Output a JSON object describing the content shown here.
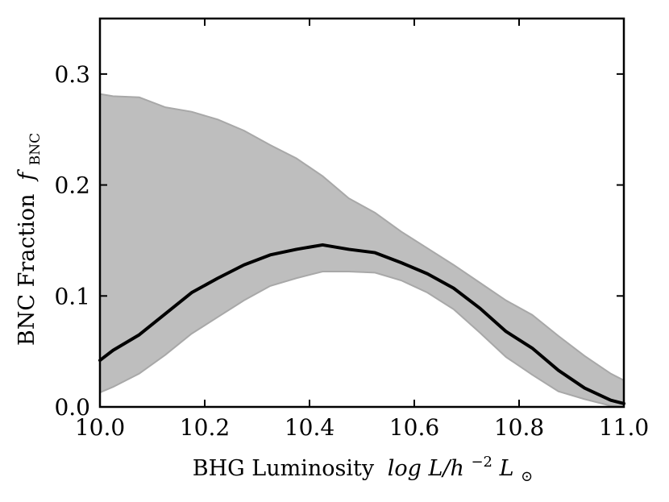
{
  "chart_data": {
    "type": "area",
    "xlabel_text": "BHG Luminosity",
    "xlabel_math": "log L/h",
    "xlabel_exp": "−2",
    "xlabel_unit": "L",
    "xlabel_sub": "⊙",
    "ylabel_text": "BNC Fraction",
    "ylabel_math": "f",
    "ylabel_sub": "BNC",
    "xlim": [
      10.0,
      11.0
    ],
    "ylim": [
      0.0,
      0.35
    ],
    "x_ticks": [
      10.0,
      10.2,
      10.4,
      10.6,
      10.8,
      11.0
    ],
    "x_tick_labels": [
      "10.0",
      "10.2",
      "10.4",
      "10.6",
      "10.8",
      "11.0"
    ],
    "y_ticks": [
      0.0,
      0.1,
      0.2,
      0.3
    ],
    "y_tick_labels": [
      "0.0",
      "0.1",
      "0.2",
      "0.3"
    ],
    "grid": false,
    "colors": {
      "band_fill": "#bebebe",
      "band_edge": "#a8a8a8",
      "line": "#000000"
    },
    "series": [
      {
        "role": "median",
        "x": [
          10.0,
          10.025,
          10.075,
          10.125,
          10.175,
          10.225,
          10.275,
          10.325,
          10.375,
          10.425,
          10.475,
          10.525,
          10.575,
          10.625,
          10.675,
          10.725,
          10.775,
          10.825,
          10.875,
          10.925,
          10.975,
          11.0
        ],
        "y": [
          0.042,
          0.051,
          0.065,
          0.084,
          0.103,
          0.116,
          0.128,
          0.137,
          0.142,
          0.146,
          0.142,
          0.139,
          0.13,
          0.12,
          0.107,
          0.089,
          0.068,
          0.053,
          0.033,
          0.017,
          0.006,
          0.003
        ]
      },
      {
        "role": "band_upper",
        "x": [
          10.0,
          10.025,
          10.075,
          10.125,
          10.175,
          10.225,
          10.275,
          10.325,
          10.375,
          10.425,
          10.475,
          10.525,
          10.575,
          10.625,
          10.675,
          10.725,
          10.775,
          10.825,
          10.875,
          10.925,
          10.975,
          11.0
        ],
        "y": [
          0.282,
          0.28,
          0.279,
          0.27,
          0.266,
          0.259,
          0.249,
          0.236,
          0.224,
          0.208,
          0.188,
          0.175,
          0.158,
          0.143,
          0.128,
          0.112,
          0.096,
          0.083,
          0.064,
          0.046,
          0.03,
          0.024
        ]
      },
      {
        "role": "band_lower",
        "x": [
          10.0,
          10.025,
          10.075,
          10.125,
          10.175,
          10.225,
          10.275,
          10.325,
          10.375,
          10.425,
          10.475,
          10.525,
          10.575,
          10.625,
          10.675,
          10.725,
          10.775,
          10.825,
          10.875,
          10.925,
          10.975,
          11.0
        ],
        "y": [
          0.013,
          0.018,
          0.03,
          0.047,
          0.066,
          0.081,
          0.096,
          0.109,
          0.116,
          0.122,
          0.122,
          0.121,
          0.114,
          0.103,
          0.088,
          0.067,
          0.045,
          0.029,
          0.014,
          0.007,
          0.001,
          0.0
        ]
      }
    ]
  }
}
